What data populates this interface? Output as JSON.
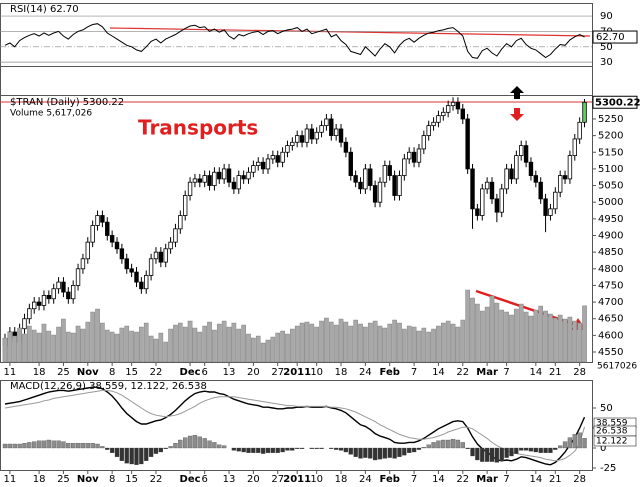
{
  "chart_data": [
    {
      "type": "line",
      "title": "RSI(14) 62.70",
      "last_label": "62.70",
      "color": "#000000",
      "ylim": [
        25,
        107
      ],
      "yticks": [
        90,
        70,
        50,
        30
      ],
      "values": [
        52,
        55,
        50,
        58,
        62,
        65,
        67,
        64,
        68,
        65,
        68,
        70,
        64,
        60,
        66,
        70,
        72,
        76,
        79,
        80,
        76,
        68,
        64,
        60,
        56,
        52,
        50,
        46,
        44,
        50,
        57,
        60,
        55,
        60,
        63,
        66,
        70,
        74,
        77,
        78,
        75,
        76,
        70,
        73,
        69,
        72,
        64,
        60,
        66,
        64,
        67,
        69,
        70,
        66,
        70,
        71,
        67,
        70,
        72,
        73,
        75,
        70,
        73,
        67,
        69,
        71,
        73,
        63,
        66,
        58,
        53,
        44,
        42,
        40,
        50,
        44,
        38,
        47,
        54,
        50,
        42,
        52,
        58,
        61,
        56,
        61,
        65,
        68,
        69,
        71,
        72,
        74,
        75,
        70,
        64,
        44,
        36,
        35,
        45,
        48,
        42,
        38,
        47,
        54,
        50,
        58,
        61,
        53,
        48,
        46,
        41,
        36,
        40,
        47,
        53,
        52,
        59,
        63,
        66,
        62.7
      ]
    },
    {
      "type": "candlestick",
      "title": "$TRAN (Daily) 5300.22",
      "annotation": "Transports",
      "last_label": "5300.22",
      "ylim": [
        4520,
        5322
      ],
      "yticks": [
        5250,
        5200,
        5150,
        5100,
        5050,
        5000,
        4950,
        4900,
        4850,
        4800,
        4750,
        4700,
        4650,
        4600,
        4550
      ],
      "xticks": [
        {
          "value": 1,
          "label": "11"
        },
        {
          "value": 7,
          "label": "18"
        },
        {
          "value": 12,
          "label": "25"
        },
        {
          "value": 17,
          "label": "Nov"
        },
        {
          "value": 22,
          "label": "8"
        },
        {
          "value": 26,
          "label": "15"
        },
        {
          "value": 31,
          "label": "22"
        },
        {
          "value": 38,
          "label": "Dec"
        },
        {
          "value": 41,
          "label": "6"
        },
        {
          "value": 46,
          "label": "13"
        },
        {
          "value": 51,
          "label": "20"
        },
        {
          "value": 56,
          "label": "27"
        },
        {
          "value": 60,
          "label": "2011"
        },
        {
          "value": 64,
          "label": "10"
        },
        {
          "value": 69,
          "label": "18"
        },
        {
          "value": 74,
          "label": "24"
        },
        {
          "value": 79,
          "label": "Feb"
        },
        {
          "value": 84,
          "label": "7"
        },
        {
          "value": 89,
          "label": "14"
        },
        {
          "value": 94,
          "label": "22"
        },
        {
          "value": 99,
          "label": "Mar"
        },
        {
          "value": 103,
          "label": "7"
        },
        {
          "value": 109,
          "label": "14"
        },
        {
          "value": 113,
          "label": "21"
        },
        {
          "value": 118,
          "label": "28"
        }
      ],
      "open": [
        4570,
        4590,
        4610,
        4580,
        4620,
        4650,
        4680,
        4700,
        4690,
        4720,
        4710,
        4740,
        4760,
        4730,
        4710,
        4750,
        4800,
        4830,
        4880,
        4930,
        4960,
        4940,
        4900,
        4880,
        4860,
        4830,
        4800,
        4790,
        4760,
        4740,
        4780,
        4830,
        4850,
        4820,
        4860,
        4880,
        4920,
        4960,
        5020,
        5060,
        5070,
        5060,
        5080,
        5050,
        5090,
        5070,
        5100,
        5060,
        5040,
        5080,
        5070,
        5090,
        5110,
        5120,
        5100,
        5130,
        5140,
        5120,
        5150,
        5170,
        5180,
        5200,
        5180,
        5220,
        5190,
        5210,
        5230,
        5250,
        5200,
        5220,
        5180,
        5150,
        5080,
        5060,
        5040,
        5100,
        5050,
        5000,
        5060,
        5110,
        5080,
        5020,
        5080,
        5130,
        5150,
        5120,
        5160,
        5200,
        5230,
        5240,
        5260,
        5270,
        5290,
        5300,
        5280,
        5250,
        5100,
        4980,
        4960,
        5040,
        5060,
        5010,
        4970,
        5040,
        5100,
        5070,
        5140,
        5170,
        5120,
        5080,
        5060,
        5010,
        4960,
        4980,
        5030,
        5080,
        5070,
        5140,
        5190,
        5240
      ],
      "high": [
        4605,
        4625,
        4625,
        4635,
        4665,
        4695,
        4715,
        4715,
        4735,
        4735,
        4755,
        4775,
        4775,
        4745,
        4765,
        4815,
        4845,
        4895,
        4945,
        4975,
        4975,
        4955,
        4915,
        4895,
        4875,
        4845,
        4815,
        4805,
        4775,
        4795,
        4845,
        4865,
        4865,
        4875,
        4895,
        4935,
        4975,
        5035,
        5075,
        5085,
        5085,
        5095,
        5095,
        5105,
        5105,
        5115,
        5115,
        5075,
        5095,
        5095,
        5105,
        5125,
        5135,
        5135,
        5145,
        5155,
        5155,
        5165,
        5185,
        5195,
        5215,
        5215,
        5235,
        5235,
        5225,
        5245,
        5265,
        5265,
        5235,
        5235,
        5195,
        5165,
        5095,
        5075,
        5115,
        5115,
        5065,
        5075,
        5125,
        5125,
        5095,
        5095,
        5145,
        5165,
        5165,
        5175,
        5215,
        5245,
        5255,
        5275,
        5285,
        5305,
        5315,
        5315,
        5295,
        5265,
        5115,
        4995,
        5055,
        5075,
        5075,
        5025,
        5055,
        5115,
        5115,
        5155,
        5185,
        5185,
        5135,
        5095,
        5075,
        5025,
        4995,
        5045,
        5095,
        5095,
        5155,
        5205,
        5255,
        5310
      ],
      "low": [
        4555,
        4575,
        4565,
        4565,
        4605,
        4635,
        4665,
        4675,
        4675,
        4695,
        4695,
        4725,
        4715,
        4695,
        4695,
        4735,
        4785,
        4815,
        4865,
        4915,
        4925,
        4885,
        4865,
        4845,
        4815,
        4785,
        4775,
        4745,
        4725,
        4725,
        4765,
        4815,
        4805,
        4805,
        4845,
        4865,
        4905,
        4945,
        5005,
        5045,
        5045,
        5045,
        5035,
        5035,
        5055,
        5055,
        5045,
        5025,
        5025,
        5055,
        5055,
        5075,
        5095,
        5085,
        5085,
        5115,
        5105,
        5105,
        5135,
        5155,
        5165,
        5165,
        5165,
        5175,
        5175,
        5195,
        5215,
        5185,
        5185,
        5165,
        5135,
        5065,
        5045,
        5025,
        5025,
        5035,
        4985,
        4985,
        5045,
        5065,
        5005,
        5005,
        5065,
        5115,
        5105,
        5105,
        5145,
        5185,
        5215,
        5225,
        5245,
        5255,
        5275,
        5265,
        5235,
        5085,
        4920,
        4945,
        4945,
        5025,
        4995,
        4940,
        4955,
        5025,
        5055,
        5055,
        5125,
        5105,
        5065,
        5045,
        4995,
        4910,
        4945,
        4965,
        5015,
        5055,
        5055,
        5125,
        5175,
        5225
      ],
      "close": [
        4590,
        4610,
        4580,
        4620,
        4650,
        4680,
        4700,
        4690,
        4720,
        4710,
        4740,
        4760,
        4730,
        4710,
        4750,
        4800,
        4830,
        4880,
        4930,
        4960,
        4940,
        4900,
        4880,
        4860,
        4830,
        4800,
        4790,
        4760,
        4740,
        4780,
        4830,
        4850,
        4820,
        4860,
        4880,
        4920,
        4960,
        5020,
        5060,
        5070,
        5060,
        5080,
        5050,
        5090,
        5070,
        5100,
        5060,
        5040,
        5080,
        5070,
        5090,
        5110,
        5120,
        5100,
        5130,
        5140,
        5120,
        5150,
        5170,
        5180,
        5200,
        5180,
        5220,
        5190,
        5210,
        5230,
        5250,
        5200,
        5220,
        5180,
        5150,
        5080,
        5060,
        5040,
        5100,
        5050,
        5000,
        5060,
        5110,
        5080,
        5020,
        5080,
        5130,
        5150,
        5120,
        5160,
        5200,
        5230,
        5240,
        5260,
        5270,
        5290,
        5300,
        5280,
        5250,
        5100,
        4980,
        4960,
        5040,
        5060,
        5010,
        4970,
        5040,
        5100,
        5070,
        5140,
        5170,
        5120,
        5080,
        5060,
        5010,
        4960,
        4980,
        5030,
        5080,
        5070,
        5140,
        5190,
        5240,
        5300.22
      ]
    },
    {
      "type": "bar",
      "title": "Volume 5,617,026",
      "last_label": "5617026",
      "color": "#a8a8a8",
      "ylim": [
        0,
        12000000
      ],
      "values": [
        2400000.0,
        3000000.0,
        2600000.0,
        3400000.0,
        2800000.0,
        3600000.0,
        3200000.0,
        2900000.0,
        3800000.0,
        3100000.0,
        2700000.0,
        3500000.0,
        4300000.0,
        3000000.0,
        2900000.0,
        3600000.0,
        3300000.0,
        4000000.0,
        5000000.0,
        5300000.0,
        3900000.0,
        3200000.0,
        3000000.0,
        2800000.0,
        3400000.0,
        3600000.0,
        3100000.0,
        3000000.0,
        3500000.0,
        3900000.0,
        2600000.0,
        2300000.0,
        2900000.0,
        2000000.0,
        3300000.0,
        3700000.0,
        3900000.0,
        3500000.0,
        4100000.0,
        3400000.0,
        3000000.0,
        3600000.0,
        4000000.0,
        3200000.0,
        3800000.0,
        4100000.0,
        3500000.0,
        3900000.0,
        3300000.0,
        3700000.0,
        2800000.0,
        2400000.0,
        2600000.0,
        1900000.0,
        2200000.0,
        2500000.0,
        2900000.0,
        3100000.0,
        2800000.0,
        3300000.0,
        3600000.0,
        3900000.0,
        4000000.0,
        3800000.0,
        3500000.0,
        4100000.0,
        4400000.0,
        4000000.0,
        3700000.0,
        4300000.0,
        4000000.0,
        3600000.0,
        4200000.0,
        3800000.0,
        3500000.0,
        3900000.0,
        4100000.0,
        3600000.0,
        3400000.0,
        3800000.0,
        4200000.0,
        3900000.0,
        3300000.0,
        3600000.0,
        3500000.0,
        3100000.0,
        3400000.0,
        3000000.0,
        3300000.0,
        3600000.0,
        3900000.0,
        4100000.0,
        3800000.0,
        3500000.0,
        4200000.0,
        7200000.0,
        6400000.0,
        5800000.0,
        5100000.0,
        5500000.0,
        6600000.0,
        5900000.0,
        5200000.0,
        5000000.0,
        4700000.0,
        5300000.0,
        5800000.0,
        5000000.0,
        4600000.0,
        5200000.0,
        5600000.0,
        5100000.0,
        4800000.0,
        4400000.0,
        4700000.0,
        4300000.0,
        4500000.0,
        4100000.0,
        3900000.0,
        5617026
      ]
    },
    {
      "type": "macd",
      "title": "MACD(12,26,9) 38.559, 12.122, 26.538",
      "ylim": [
        -27.5,
        85
      ],
      "yticks": [
        50,
        25,
        0,
        -25
      ],
      "series": [
        {
          "color": "#000000",
          "values": [
            55,
            56,
            57,
            58,
            60,
            62,
            64,
            66,
            68,
            70,
            71,
            72,
            72,
            71,
            72,
            73,
            74,
            75,
            76,
            76,
            74,
            70,
            65,
            58,
            50,
            43,
            38,
            33,
            30,
            30,
            32,
            34,
            35,
            38,
            42,
            47,
            53,
            59,
            64,
            68,
            70,
            71,
            70,
            70,
            68,
            67,
            64,
            61,
            59,
            57,
            55,
            54,
            53,
            51,
            51,
            50,
            49,
            49,
            50,
            50,
            51,
            51,
            52,
            51,
            51,
            51,
            52,
            50,
            49,
            47,
            44,
            39,
            34,
            29,
            27,
            23,
            18,
            15,
            13,
            11,
            7,
            6,
            6,
            7,
            7,
            9,
            12,
            16,
            20,
            24,
            27,
            30,
            33,
            34,
            33,
            25,
            14,
            5,
            -1,
            -5,
            -10,
            -15,
            -16,
            -15,
            -16,
            -14,
            -11,
            -12,
            -14,
            -16,
            -18,
            -20,
            -21,
            -18,
            -12,
            -5,
            4,
            13,
            25,
            38.559
          ],
          "value_label": "38.559"
        },
        {
          "color": "#999999",
          "values": [
            50,
            51,
            52,
            53,
            54,
            55,
            56,
            57,
            59,
            60,
            62,
            63,
            64,
            65,
            66,
            67,
            68,
            69,
            70,
            71,
            72,
            72,
            71,
            69,
            66,
            62,
            58,
            54,
            50,
            46,
            43,
            41,
            40,
            39,
            40,
            41,
            43,
            46,
            49,
            52,
            56,
            59,
            61,
            63,
            64,
            64,
            64,
            64,
            63,
            62,
            61,
            60,
            59,
            58,
            57,
            56,
            55,
            54,
            53,
            53,
            52,
            52,
            52,
            52,
            52,
            52,
            52,
            51,
            51,
            50,
            49,
            47,
            45,
            42,
            39,
            36,
            33,
            29,
            26,
            23,
            20,
            17,
            15,
            13,
            12,
            11,
            11,
            12,
            13,
            15,
            17,
            20,
            22,
            24,
            26,
            26,
            24,
            20,
            16,
            12,
            7,
            3,
            0,
            -3,
            -6,
            -7,
            -8,
            -9,
            -10,
            -11,
            -12,
            -14,
            -15,
            -16,
            -15,
            -13,
            -9,
            -4,
            6,
            26.538
          ],
          "value_label": "26.538"
        },
        {
          "color": "#8c8c8c",
          "negative_color": "#333333",
          "values": [
            5,
            5,
            5,
            5,
            6,
            7,
            8,
            9,
            9,
            10,
            9,
            9,
            8,
            6,
            6,
            6,
            6,
            6,
            6,
            5,
            2,
            -2,
            -6,
            -11,
            -16,
            -19,
            -20,
            -21,
            -20,
            -16,
            -11,
            -7,
            -5,
            -1,
            2,
            6,
            10,
            13,
            15,
            16,
            14,
            12,
            9,
            7,
            4,
            3,
            0,
            -3,
            -4,
            -5,
            -6,
            -6,
            -6,
            -7,
            -6,
            -6,
            -6,
            -5,
            -3,
            -3,
            -1,
            -1,
            0,
            -1,
            -1,
            -1,
            0,
            -1,
            -2,
            -3,
            -5,
            -8,
            -11,
            -13,
            -12,
            -13,
            -15,
            -14,
            -13,
            -12,
            -13,
            -11,
            -9,
            -6,
            -5,
            -2,
            1,
            4,
            7,
            9,
            10,
            10,
            11,
            10,
            7,
            -1,
            -10,
            -15,
            -17,
            -17,
            -17,
            -18,
            -16,
            -12,
            -10,
            -7,
            -3,
            -3,
            -4,
            -5,
            -6,
            -6,
            -6,
            -2,
            3,
            8,
            13,
            17,
            19,
            12.122
          ],
          "value_label": "12.122"
        }
      ]
    }
  ]
}
